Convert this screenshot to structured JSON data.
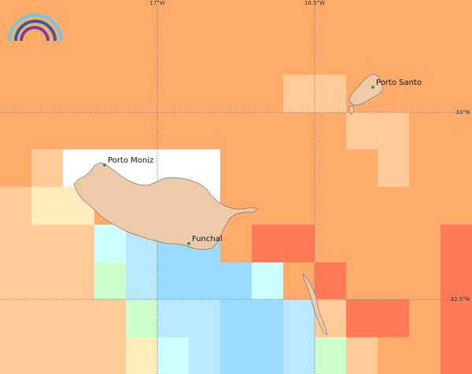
{
  "map": {
    "graticule": {
      "lon_labels": [
        "17°W",
        "16.5°W"
      ],
      "lat_labels": [
        "33°N",
        "32.5°N"
      ]
    },
    "places": [
      {
        "name": "Porto Moniz",
        "id": "porto-moniz"
      },
      {
        "name": "Funchal",
        "id": "funchal"
      },
      {
        "name": "Porto Santo",
        "id": "porto-santo"
      }
    ],
    "colors": {
      "orange": "#ffab6b",
      "light_orange": "#ffcc99",
      "pale_yellow": "#ffeebb",
      "red_orange": "#ff7a55",
      "light_cyan": "#ccffff",
      "light_blue": "#b9e8ff",
      "sky_blue": "#99dcff",
      "pale_green": "#ccffcc",
      "land": "#efcaa8",
      "no_data": "#ffffff"
    },
    "logo": "rainbow-arc-logo"
  }
}
